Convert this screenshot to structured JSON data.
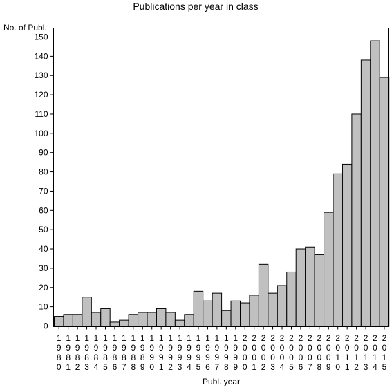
{
  "chart_data": {
    "type": "bar",
    "title": "Publications per year in class",
    "ylabel": "No. of Publ.",
    "xlabel": "Publ. year",
    "ylim": [
      0,
      155
    ],
    "yticks": [
      0,
      10,
      20,
      30,
      40,
      50,
      60,
      70,
      80,
      90,
      100,
      110,
      120,
      130,
      140,
      150
    ],
    "categories": [
      "1980",
      "1981",
      "1982",
      "1983",
      "1984",
      "1985",
      "1986",
      "1987",
      "1988",
      "1989",
      "1990",
      "1991",
      "1992",
      "1993",
      "1994",
      "1995",
      "1996",
      "1997",
      "1998",
      "1999",
      "2000",
      "2001",
      "2002",
      "2003",
      "2004",
      "2005",
      "2006",
      "2007",
      "2008",
      "2009",
      "2010",
      "2011",
      "2012",
      "2013",
      "2014",
      "2015"
    ],
    "values": [
      5,
      6,
      6,
      15,
      7,
      9,
      2,
      3,
      6,
      7,
      7,
      9,
      7,
      3,
      6,
      18,
      13,
      17,
      8,
      13,
      12,
      16,
      32,
      17,
      21,
      28,
      40,
      41,
      37,
      59,
      79,
      84,
      110,
      138,
      148,
      129
    ],
    "grid": false,
    "legend": "none",
    "bar_color": "#c0c0c0"
  }
}
